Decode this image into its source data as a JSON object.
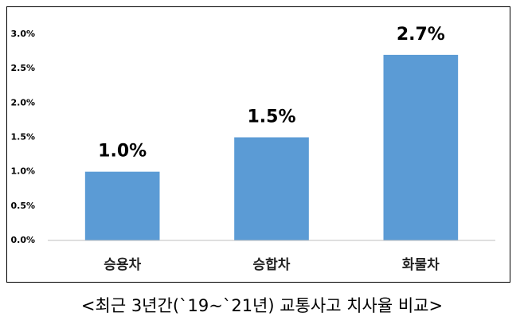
{
  "chart_data": {
    "type": "bar",
    "title": "<최근 3년간(`19~`21년) 교통사고 치사율 비교>",
    "categories": [
      "승용차",
      "승합차",
      "화물차"
    ],
    "values": [
      1.0,
      1.5,
      2.7
    ],
    "value_labels": [
      "1.0%",
      "1.5%",
      "2.7%"
    ],
    "color": "#5b9bd5",
    "ylim": [
      0,
      3
    ],
    "yticks": [
      {
        "value": 0,
        "label": "0.0%"
      },
      {
        "value": 0.5,
        "label": "0.5%"
      },
      {
        "value": 1,
        "label": "1.0%"
      },
      {
        "value": 1.5,
        "label": "1.5%"
      },
      {
        "value": 2,
        "label": "2.0%"
      },
      {
        "value": 2.5,
        "label": "2.5%"
      },
      {
        "value": 3,
        "label": "3.0%"
      }
    ],
    "grid": false
  }
}
